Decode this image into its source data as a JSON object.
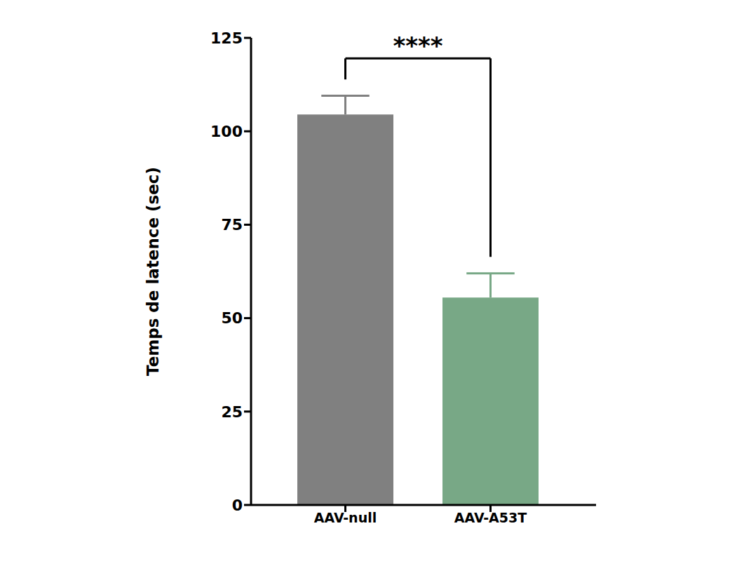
{
  "chart_data": {
    "type": "bar",
    "categories": [
      "AAV-null",
      "AAV-A53T"
    ],
    "values": [
      104.5,
      55.5
    ],
    "errors": [
      5,
      6.5
    ],
    "colors": [
      "#808080",
      "#78a886"
    ],
    "ylabel": "Temps de latence (sec)",
    "ylim": [
      0,
      125
    ],
    "yticks": [
      0,
      25,
      50,
      75,
      100,
      125
    ],
    "annotation": "****",
    "grid": false
  }
}
